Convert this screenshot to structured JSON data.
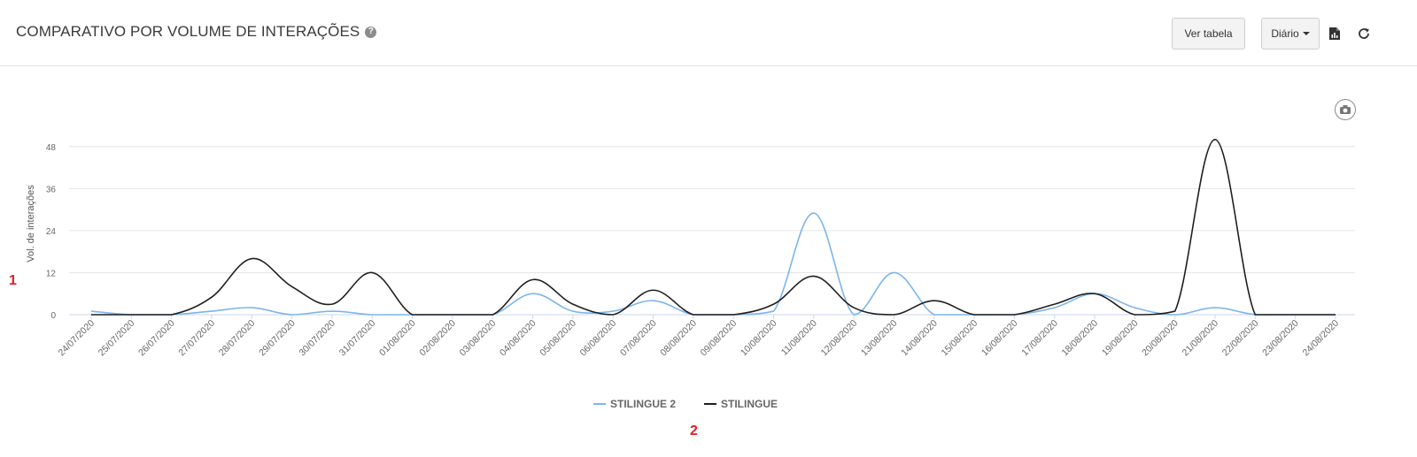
{
  "header": {
    "title": "COMPARATIVO POR VOLUME DE INTERAÇÕES",
    "help_icon": "question-circle-icon",
    "view_table_label": "Ver tabela",
    "period_label": "Diário",
    "export_icon": "file-chart-icon",
    "refresh_icon": "refresh-icon"
  },
  "camera_icon": "camera-icon",
  "markers": {
    "one": "1",
    "two": "2"
  },
  "chart_data": {
    "type": "line",
    "title": "",
    "xlabel": "",
    "ylabel": "Vol. de interações",
    "ylim": [
      0,
      54
    ],
    "yticks": [
      0,
      12,
      24,
      36,
      48
    ],
    "grid": true,
    "legend": "bottom-center",
    "categories": [
      "24/07/2020",
      "25/07/2020",
      "26/07/2020",
      "27/07/2020",
      "28/07/2020",
      "29/07/2020",
      "30/07/2020",
      "31/07/2020",
      "01/08/2020",
      "02/08/2020",
      "03/08/2020",
      "04/08/2020",
      "05/08/2020",
      "06/08/2020",
      "07/08/2020",
      "08/08/2020",
      "09/08/2020",
      "10/08/2020",
      "11/08/2020",
      "12/08/2020",
      "13/08/2020",
      "14/08/2020",
      "15/08/2020",
      "16/08/2020",
      "17/08/2020",
      "18/08/2020",
      "19/08/2020",
      "20/08/2020",
      "21/08/2020",
      "22/08/2020",
      "23/08/2020",
      "24/08/2020"
    ],
    "series": [
      {
        "name": "STILINGUE 2",
        "color": "#7cb5ec",
        "values": [
          1,
          0,
          0,
          1,
          2,
          0,
          1,
          0,
          0,
          0,
          0,
          6,
          1,
          1,
          4,
          0,
          0,
          1,
          29,
          0,
          12,
          0,
          0,
          0,
          2,
          6,
          2,
          0,
          2,
          0,
          0,
          0
        ]
      },
      {
        "name": "STILINGUE",
        "color": "#1f1f1f",
        "values": [
          0,
          0,
          0,
          5,
          16,
          8,
          3,
          12,
          0,
          0,
          0,
          10,
          3,
          0,
          7,
          0,
          0,
          3,
          11,
          2,
          0,
          4,
          0,
          0,
          3,
          6,
          0,
          1,
          50,
          0,
          0,
          0
        ]
      }
    ]
  }
}
